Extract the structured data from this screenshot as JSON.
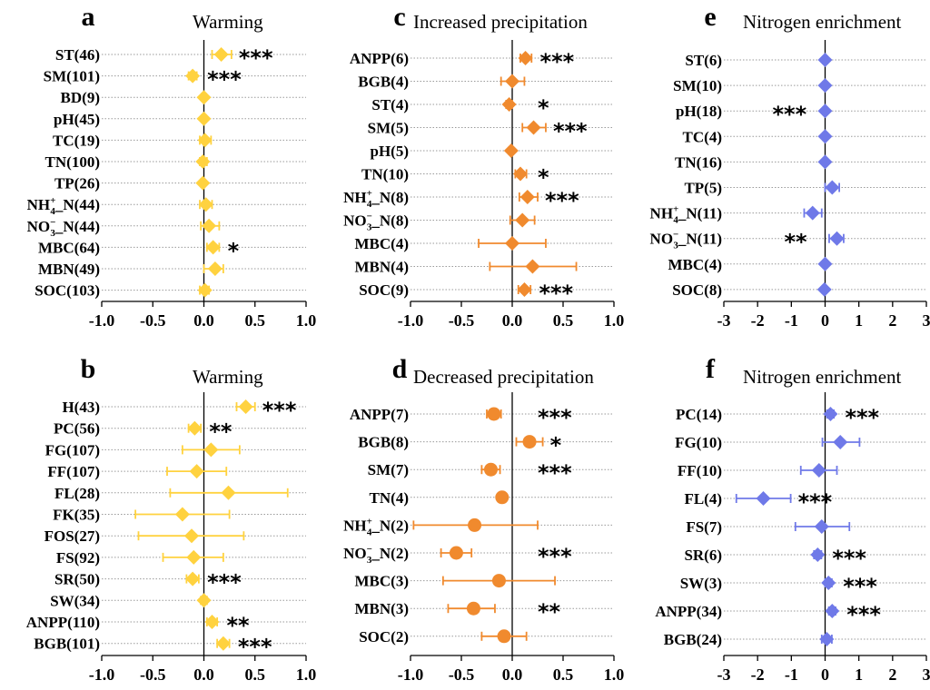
{
  "colors": {
    "yellow": "#FFD23F",
    "orange": "#F08A2E",
    "blue": "#6F79E8"
  },
  "chart_data": [
    {
      "type": "forest",
      "panel_letter": "a",
      "title": "Warming",
      "marker": "diamond",
      "color_key": "yellow",
      "xlim": [
        -1.0,
        1.0
      ],
      "xticks": [
        "-1.0",
        "-0.5",
        "0.0",
        "0.5",
        "1.0"
      ],
      "rows": [
        {
          "label": "ST(46)",
          "mean": 0.17,
          "lo": 0.08,
          "hi": 0.27,
          "sig": "***"
        },
        {
          "label": "SM(101)",
          "mean": -0.11,
          "lo": -0.15,
          "hi": -0.07,
          "sig": "***"
        },
        {
          "label": "BD(9)",
          "mean": 0.0,
          "lo": -0.02,
          "hi": 0.02,
          "sig": ""
        },
        {
          "label": "pH(45)",
          "mean": 0.0,
          "lo": -0.02,
          "hi": 0.02,
          "sig": ""
        },
        {
          "label": "TC(19)",
          "mean": 0.01,
          "lo": -0.04,
          "hi": 0.07,
          "sig": ""
        },
        {
          "label": "TN(100)",
          "mean": -0.01,
          "lo": -0.04,
          "hi": 0.03,
          "sig": ""
        },
        {
          "label": "TP(26)",
          "mean": -0.01,
          "lo": -0.03,
          "hi": 0.01,
          "sig": ""
        },
        {
          "label": "NH4+_N(44)",
          "display": "nh4",
          "n": "44",
          "mean": 0.02,
          "lo": -0.04,
          "hi": 0.08,
          "sig": ""
        },
        {
          "label": "NO3-_N(44)",
          "display": "no3",
          "n": "44",
          "mean": 0.05,
          "lo": -0.03,
          "hi": 0.15,
          "sig": ""
        },
        {
          "label": "MBC(64)",
          "mean": 0.09,
          "lo": 0.03,
          "hi": 0.15,
          "sig": "*"
        },
        {
          "label": "MBN(49)",
          "mean": 0.11,
          "lo": 0.0,
          "hi": 0.19,
          "sig": ""
        },
        {
          "label": "SOC(103)",
          "mean": 0.01,
          "lo": -0.04,
          "hi": 0.05,
          "sig": ""
        }
      ]
    },
    {
      "type": "forest",
      "panel_letter": "c",
      "title": "Increased precipitation",
      "marker": "diamond",
      "color_key": "orange",
      "xlim": [
        -1.0,
        1.0
      ],
      "xticks": [
        "-1.0",
        "-0.5",
        "0.0",
        "0.5",
        "1.0"
      ],
      "rows": [
        {
          "label": "ANPP(6)",
          "mean": 0.13,
          "lo": 0.08,
          "hi": 0.19,
          "sig": "***"
        },
        {
          "label": "BGB(4)",
          "mean": 0.0,
          "lo": -0.11,
          "hi": 0.12,
          "sig": ""
        },
        {
          "label": "ST(4)",
          "mean": -0.03,
          "lo": -0.06,
          "hi": 0.0,
          "sig": "*"
        },
        {
          "label": "SM(5)",
          "mean": 0.21,
          "lo": 0.1,
          "hi": 0.33,
          "sig": "***"
        },
        {
          "label": "pH(5)",
          "mean": -0.01,
          "lo": -0.03,
          "hi": 0.01,
          "sig": ""
        },
        {
          "label": "TN(10)",
          "mean": 0.08,
          "lo": 0.03,
          "hi": 0.14,
          "sig": "*"
        },
        {
          "label": "NH4+_N(8)",
          "display": "nh4",
          "n": "8",
          "mean": 0.15,
          "lo": 0.07,
          "hi": 0.25,
          "sig": "***"
        },
        {
          "label": "NO3-_N(8)",
          "display": "no3",
          "n": "8",
          "mean": 0.1,
          "lo": -0.02,
          "hi": 0.22,
          "sig": ""
        },
        {
          "label": "MBC(4)",
          "mean": 0.0,
          "lo": -0.33,
          "hi": 0.33,
          "sig": ""
        },
        {
          "label": "MBN(4)",
          "mean": 0.2,
          "lo": -0.22,
          "hi": 0.63,
          "sig": ""
        },
        {
          "label": "SOC(9)",
          "mean": 0.12,
          "lo": 0.06,
          "hi": 0.18,
          "sig": "***"
        }
      ]
    },
    {
      "type": "forest",
      "panel_letter": "e",
      "title": "Nitrogen enrichment",
      "marker": "diamond",
      "color_key": "blue",
      "xlim": [
        -3,
        3
      ],
      "xticks": [
        "-3",
        "-2",
        "-1",
        "0",
        "1",
        "2",
        "3"
      ],
      "rows": [
        {
          "label": "ST(6)",
          "mean": 0.0,
          "lo": -0.06,
          "hi": 0.06,
          "sig": ""
        },
        {
          "label": "SM(10)",
          "mean": 0.0,
          "lo": -0.06,
          "hi": 0.06,
          "sig": ""
        },
        {
          "label": "pH(18)",
          "mean": 0.0,
          "lo": -0.06,
          "hi": 0.06,
          "sig": "***"
        },
        {
          "label": "TC(4)",
          "mean": 0.0,
          "lo": -0.06,
          "hi": 0.06,
          "sig": ""
        },
        {
          "label": "TN(16)",
          "mean": 0.0,
          "lo": -0.06,
          "hi": 0.06,
          "sig": ""
        },
        {
          "label": "TP(5)",
          "mean": 0.21,
          "lo": 0.0,
          "hi": 0.42,
          "sig": ""
        },
        {
          "label": "NH4+_N(11)",
          "display": "nh4",
          "n": "11",
          "mean": -0.37,
          "lo": -0.62,
          "hi": -0.1,
          "sig": ""
        },
        {
          "label": "NO3-_N(11)",
          "display": "no3",
          "n": "11",
          "mean": 0.35,
          "lo": 0.12,
          "hi": 0.55,
          "sig": "**"
        },
        {
          "label": "MBC(4)",
          "mean": 0.0,
          "lo": -0.06,
          "hi": 0.06,
          "sig": ""
        },
        {
          "label": "SOC(8)",
          "mean": -0.02,
          "lo": -0.08,
          "hi": 0.04,
          "sig": ""
        }
      ]
    },
    {
      "type": "forest",
      "panel_letter": "b",
      "title": "Warming",
      "marker": "diamond",
      "color_key": "yellow",
      "xlim": [
        -1.0,
        1.0
      ],
      "xticks": [
        "-1.0",
        "-0.5",
        "0.0",
        "0.5",
        "1.0"
      ],
      "rows": [
        {
          "label": "H(43)",
          "mean": 0.41,
          "lo": 0.32,
          "hi": 0.5,
          "sig": "***"
        },
        {
          "label": "PC(56)",
          "mean": -0.09,
          "lo": -0.15,
          "hi": -0.03,
          "sig": "**"
        },
        {
          "label": "FG(107)",
          "mean": 0.07,
          "lo": -0.21,
          "hi": 0.35,
          "sig": ""
        },
        {
          "label": "FF(107)",
          "mean": -0.07,
          "lo": -0.36,
          "hi": 0.22,
          "sig": ""
        },
        {
          "label": "FL(28)",
          "mean": 0.24,
          "lo": -0.33,
          "hi": 0.82,
          "sig": ""
        },
        {
          "label": "FK(35)",
          "mean": -0.21,
          "lo": -0.67,
          "hi": 0.25,
          "sig": ""
        },
        {
          "label": "FOS(27)",
          "mean": -0.12,
          "lo": -0.64,
          "hi": 0.39,
          "sig": ""
        },
        {
          "label": "FS(92)",
          "mean": -0.1,
          "lo": -0.4,
          "hi": 0.19,
          "sig": ""
        },
        {
          "label": "SR(50)",
          "mean": -0.11,
          "lo": -0.17,
          "hi": -0.05,
          "sig": "***"
        },
        {
          "label": "SW(34)",
          "mean": 0.0,
          "lo": -0.03,
          "hi": 0.03,
          "sig": ""
        },
        {
          "label": "ANPP(110)",
          "mean": 0.08,
          "lo": 0.03,
          "hi": 0.13,
          "sig": "**"
        },
        {
          "label": "BGB(101)",
          "mean": 0.19,
          "lo": 0.13,
          "hi": 0.25,
          "sig": "***"
        }
      ]
    },
    {
      "type": "forest",
      "panel_letter": "d",
      "title": "Decreased precipitation",
      "marker": "circle",
      "color_key": "orange",
      "xlim": [
        -1.0,
        1.0
      ],
      "xticks": [
        "-1.0",
        "-0.5",
        "0.0",
        "0.5",
        "1.0"
      ],
      "rows": [
        {
          "label": "ANPP(7)",
          "mean": -0.18,
          "lo": -0.25,
          "hi": -0.11,
          "sig": "***"
        },
        {
          "label": "BGB(8)",
          "mean": 0.17,
          "lo": 0.04,
          "hi": 0.3,
          "sig": "*"
        },
        {
          "label": "SM(7)",
          "mean": -0.21,
          "lo": -0.3,
          "hi": -0.12,
          "sig": "***"
        },
        {
          "label": "TN(4)",
          "mean": -0.1,
          "lo": -0.14,
          "hi": -0.06,
          "sig": ""
        },
        {
          "label": "NH4+_N(2)",
          "display": "nh4",
          "n": "2",
          "mean": -0.37,
          "lo": -0.97,
          "hi": 0.25,
          "sig": ""
        },
        {
          "label": "NO3-_N(2)",
          "display": "no3",
          "n": "2",
          "mean": -0.55,
          "lo": -0.7,
          "hi": -0.4,
          "sig": "***"
        },
        {
          "label": "MBC(3)",
          "mean": -0.13,
          "lo": -0.68,
          "hi": 0.42,
          "sig": ""
        },
        {
          "label": "MBN(3)",
          "mean": -0.38,
          "lo": -0.63,
          "hi": -0.17,
          "sig": "**"
        },
        {
          "label": "SOC(2)",
          "mean": -0.08,
          "lo": -0.3,
          "hi": 0.14,
          "sig": ""
        }
      ]
    },
    {
      "type": "forest",
      "panel_letter": "f",
      "title": "Nitrogen enrichment",
      "marker": "diamond",
      "color_key": "blue",
      "xlim": [
        -3,
        3
      ],
      "xticks": [
        "-3",
        "-2",
        "-1",
        "0",
        "1",
        "2",
        "3"
      ],
      "rows": [
        {
          "label": "PC(14)",
          "mean": 0.16,
          "lo": 0.06,
          "hi": 0.26,
          "sig": "***"
        },
        {
          "label": "FG(10)",
          "mean": 0.45,
          "lo": -0.08,
          "hi": 1.02,
          "sig": ""
        },
        {
          "label": "FF(10)",
          "mean": -0.18,
          "lo": -0.72,
          "hi": 0.35,
          "sig": ""
        },
        {
          "label": "FL(4)",
          "mean": -1.83,
          "lo": -2.63,
          "hi": -1.02,
          "sig": "***"
        },
        {
          "label": "FS(7)",
          "mean": -0.1,
          "lo": -0.88,
          "hi": 0.72,
          "sig": ""
        },
        {
          "label": "SR(6)",
          "mean": -0.22,
          "lo": -0.33,
          "hi": -0.11,
          "sig": "***"
        },
        {
          "label": "SW(3)",
          "mean": 0.1,
          "lo": 0.0,
          "hi": 0.2,
          "sig": "***"
        },
        {
          "label": "ANPP(34)",
          "mean": 0.21,
          "lo": 0.11,
          "hi": 0.31,
          "sig": "***"
        },
        {
          "label": "BGB(24)",
          "mean": 0.05,
          "lo": -0.1,
          "hi": 0.2,
          "sig": ""
        }
      ]
    }
  ]
}
